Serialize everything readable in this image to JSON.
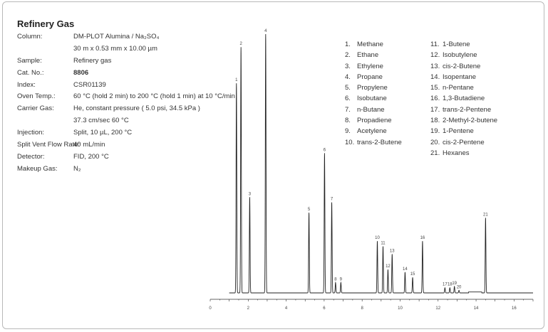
{
  "title": "Refinery Gas",
  "conditions": [
    {
      "label": "Column:",
      "value": "DM-PLOT Alumina / Na₂SO₄"
    },
    {
      "label": "",
      "value": "30 m x 0.53 mm x 10.00 µm"
    },
    {
      "label": "Sample:",
      "value": "Refinery gas"
    },
    {
      "label": "Cat. No.:",
      "value": "8806",
      "bold": true
    },
    {
      "label": "Index:",
      "value": "CSR01139"
    },
    {
      "label": "Oven Temp.:",
      "value": "60 °C (hold 2 min) to 200 °C (hold 1 min) at 10 °C/min"
    },
    {
      "label": "Carrier Gas:",
      "value": "He, constant pressure ( 5.0 psi, 34.5 kPa )"
    },
    {
      "label": "",
      "value": "37.3 cm/sec 60 °C"
    },
    {
      "label": "Injection:",
      "value": "Split, 10 µL, 200 °C"
    },
    {
      "label": "Split Vent Flow Rate:",
      "value": "40 mL/min"
    },
    {
      "label": "Detector:",
      "value": "FID, 200 °C"
    },
    {
      "label": "Makeup Gas:",
      "value": "N₂"
    }
  ],
  "legend_left": [
    {
      "num": "1.",
      "name": "Methane"
    },
    {
      "num": "2.",
      "name": "Ethane"
    },
    {
      "num": "3.",
      "name": "Ethylene"
    },
    {
      "num": "4.",
      "name": "Propane"
    },
    {
      "num": "5.",
      "name": "Propylene"
    },
    {
      "num": "6.",
      "name": "Isobutane"
    },
    {
      "num": "7.",
      "name": "n-Butane"
    },
    {
      "num": "8.",
      "name": "Propadiene"
    },
    {
      "num": "9.",
      "name": "Acetylene"
    },
    {
      "num": "10.",
      "name": "trans-2-Butene"
    }
  ],
  "legend_right": [
    {
      "num": "11.",
      "name": "1-Butene"
    },
    {
      "num": "12.",
      "name": "Isobutylene"
    },
    {
      "num": "13.",
      "name": "cis-2-Butene"
    },
    {
      "num": "14.",
      "name": "Isopentane"
    },
    {
      "num": "15.",
      "name": "n-Pentane"
    },
    {
      "num": "16.",
      "name": "1,3-Butadiene"
    },
    {
      "num": "17.",
      "name": "trans-2-Pentene"
    },
    {
      "num": "18.",
      "name": "2-Methyl-2-butene"
    },
    {
      "num": "19.",
      "name": "1-Pentene"
    },
    {
      "num": "20.",
      "name": "cis-2-Pentene"
    },
    {
      "num": "21.",
      "name": "Hexanes"
    }
  ],
  "chart_data": {
    "type": "line",
    "title": "",
    "xlabel": "",
    "ylabel": "",
    "xlim": [
      0,
      17
    ],
    "ylim": [
      0,
      100
    ],
    "xticks": [
      0,
      2,
      4,
      6,
      8,
      10,
      12,
      14,
      16
    ],
    "grid": false,
    "line_color": "#222222",
    "peaks": [
      {
        "label": "1",
        "x": 1.38,
        "y": 81.0
      },
      {
        "label": "2",
        "x": 1.62,
        "y": 95.0
      },
      {
        "label": "3",
        "x": 2.08,
        "y": 37.0
      },
      {
        "label": "4",
        "x": 2.92,
        "y": 100.0
      },
      {
        "label": "5",
        "x": 5.2,
        "y": 31.0
      },
      {
        "label": "6",
        "x": 6.02,
        "y": 54.0
      },
      {
        "label": "7",
        "x": 6.4,
        "y": 35.0
      },
      {
        "label": "8",
        "x": 6.6,
        "y": 4.0
      },
      {
        "label": "9",
        "x": 6.88,
        "y": 4.0
      },
      {
        "label": "10",
        "x": 8.8,
        "y": 20.0
      },
      {
        "label": "11",
        "x": 9.1,
        "y": 18.0
      },
      {
        "label": "12",
        "x": 9.36,
        "y": 9.0
      },
      {
        "label": "13",
        "x": 9.58,
        "y": 15.0
      },
      {
        "label": "14",
        "x": 10.26,
        "y": 8.0
      },
      {
        "label": "15",
        "x": 10.66,
        "y": 6.0
      },
      {
        "label": "16",
        "x": 11.18,
        "y": 20.0
      },
      {
        "label": "17",
        "x": 12.36,
        "y": 2.0
      },
      {
        "label": "18",
        "x": 12.62,
        "y": 2.0
      },
      {
        "label": "19",
        "x": 12.86,
        "y": 2.5
      },
      {
        "label": "20",
        "x": 13.1,
        "y": 1.0
      },
      {
        "label": "21",
        "x": 14.5,
        "y": 29.0
      }
    ]
  }
}
